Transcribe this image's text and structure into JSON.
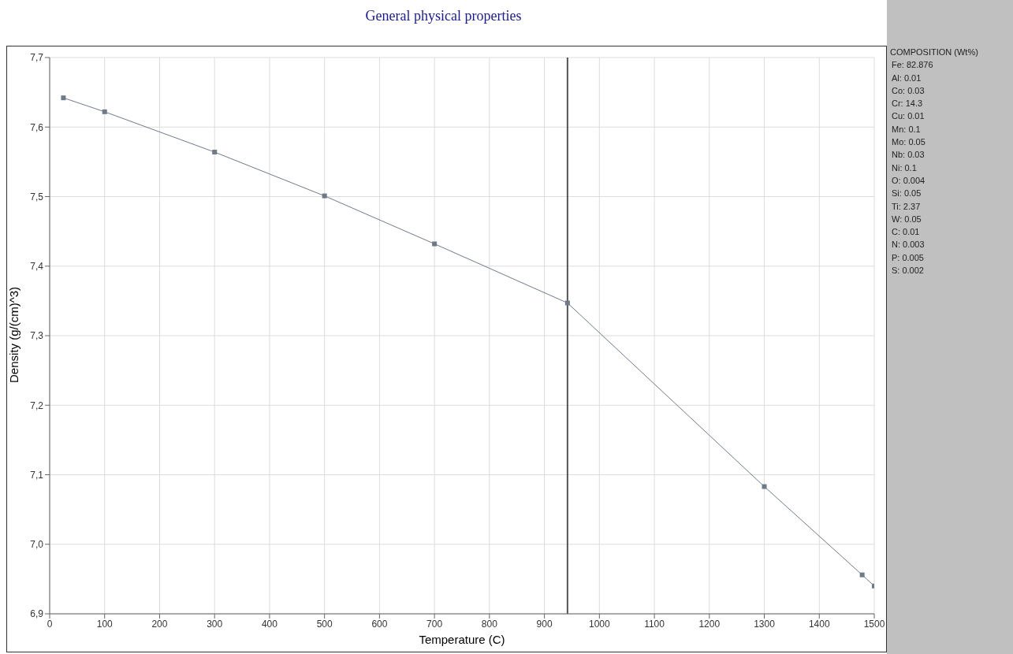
{
  "chart_data": {
    "type": "line",
    "title": "General physical properties",
    "xlabel": "Temperature (C)",
    "ylabel": "Density (g/(cm)^3)",
    "x": [
      25,
      100,
      300,
      500,
      700,
      942,
      1300,
      1478,
      1500
    ],
    "series": [
      {
        "color": "#6f7a88",
        "values": [
          7.642,
          7.622,
          7.564,
          7.501,
          7.432,
          7.347,
          7.083,
          6.956,
          6.94
        ]
      }
    ],
    "xlim": [
      0,
      1500
    ],
    "xticks": [
      0,
      100,
      200,
      300,
      400,
      500,
      600,
      700,
      800,
      900,
      1000,
      1100,
      1200,
      1300,
      1400,
      1500
    ],
    "ylim": [
      6.9,
      7.7
    ],
    "yticks": [
      {
        "value": 6.9,
        "label": "6,9"
      },
      {
        "value": 7.0,
        "label": "7,0"
      },
      {
        "value": 7.1,
        "label": "7,1"
      },
      {
        "value": 7.2,
        "label": "7,2"
      },
      {
        "value": 7.3,
        "label": "7,3"
      },
      {
        "value": 7.4,
        "label": "7,4"
      },
      {
        "value": 7.5,
        "label": "7,5"
      },
      {
        "value": 7.6,
        "label": "7,6"
      },
      {
        "value": 7.7,
        "label": "7,7"
      }
    ],
    "ref_lines": [
      {
        "axis": "x",
        "value": 942,
        "color": "#555555"
      }
    ],
    "grid": true,
    "marker": "square",
    "line_style": "solid",
    "legend": false,
    "annotations": [
      "COMPOSITION (Wt%)",
      "Fe: 82.876",
      "Al: 0.01",
      "Co: 0.03",
      "Cr: 14.3",
      "Cu: 0.01",
      "Mn: 0.1",
      "Mo: 0.05",
      "Nb: 0.03",
      "Ni: 0.1",
      "O: 0.004",
      "Si: 0.05",
      "Ti: 2.37",
      "W: 0.05",
      "C: 0.01",
      "N: 0.003",
      "P: 0.005",
      "S: 0.002"
    ]
  }
}
